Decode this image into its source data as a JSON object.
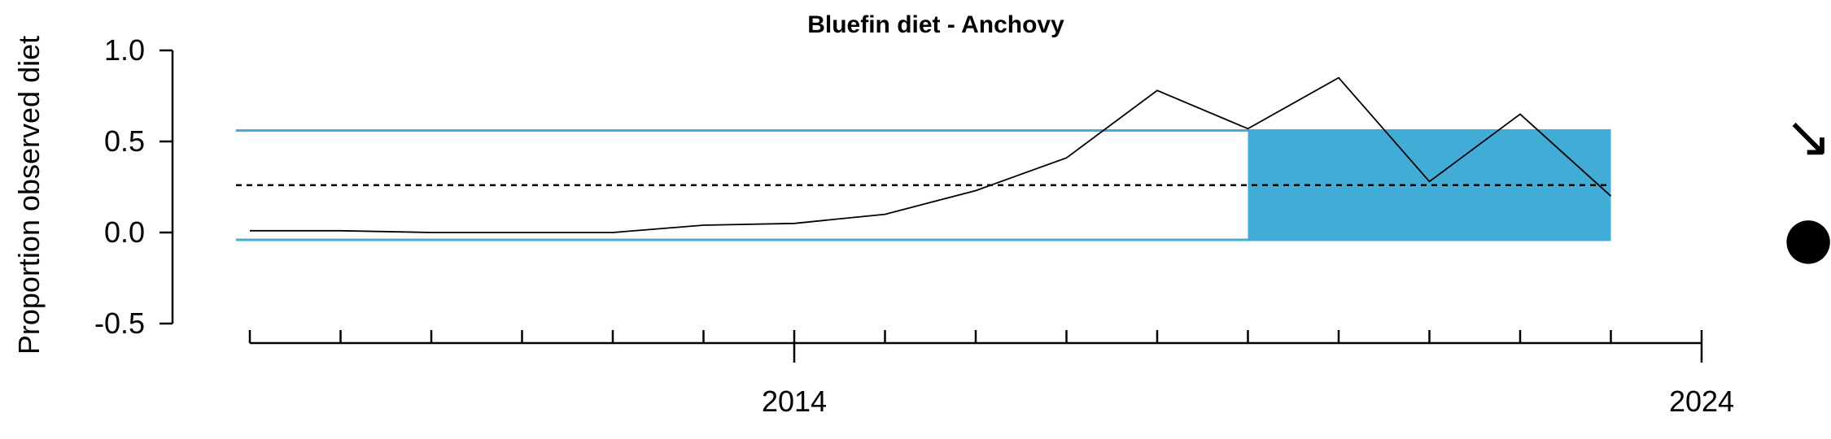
{
  "chart_data": {
    "type": "line",
    "title": "Bluefin diet - Anchovy",
    "ylabel": "Proportion observed diet",
    "xlabel": "",
    "ylim": [
      -0.5,
      1.0
    ],
    "xlim": [
      2008,
      2024
    ],
    "y_ticks": [
      "1.0",
      "0.5",
      "0.0",
      "-0.5"
    ],
    "x_tick_labels": [
      {
        "value": 2014,
        "label": "2014"
      },
      {
        "value": 2024,
        "label": "2024"
      }
    ],
    "series": [
      {
        "x": [
          2008,
          2009,
          2010,
          2011,
          2012,
          2013,
          2014,
          2015,
          2016,
          2017,
          2018,
          2019,
          2020,
          2021,
          2022,
          2023
        ],
        "values": [
          0.01,
          0.01,
          0.0,
          0.0,
          0.0,
          0.04,
          0.05,
          0.1,
          0.23,
          0.41,
          0.78,
          0.57,
          0.85,
          0.28,
          0.65,
          0.2
        ],
        "color": "#000000"
      }
    ],
    "reference_lines": {
      "mean": 0.26,
      "upper": 0.56,
      "lower": -0.04,
      "band_color": "#41ADD6",
      "mean_style": "dashed"
    },
    "highlight_range": [
      2019,
      2023
    ],
    "trend_symbol": "↘",
    "status_marker": "●",
    "grid": false,
    "legend": "none"
  }
}
